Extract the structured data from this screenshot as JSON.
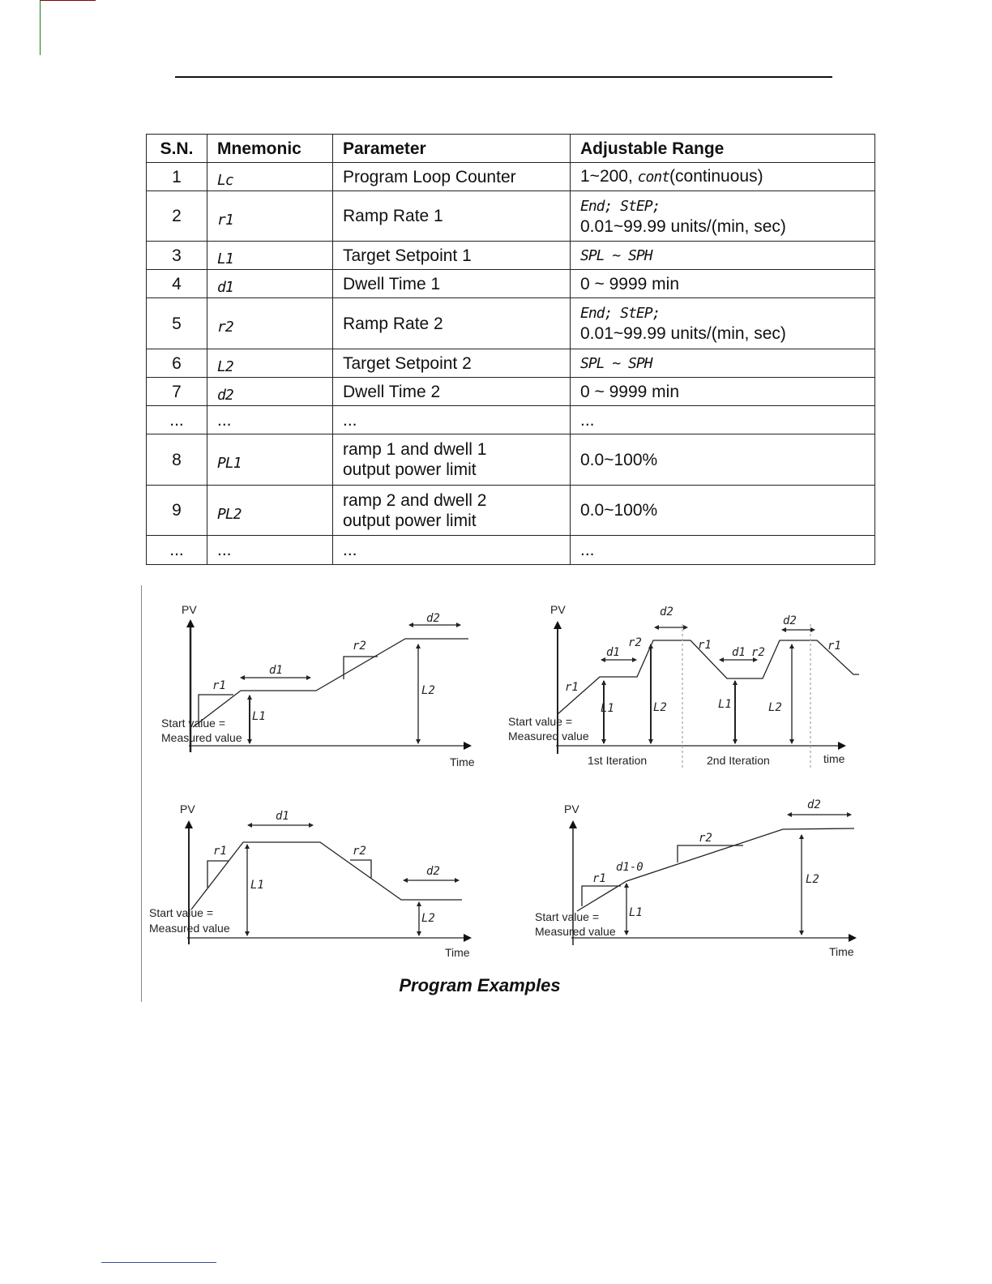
{
  "table": {
    "headers": [
      "S.N.",
      "Mnemonic",
      "Parameter",
      "Adjustable Range"
    ],
    "rows": [
      {
        "sn": "1",
        "mnemonic": "Lc",
        "parameter": [
          "Program Loop Counter"
        ],
        "range": [
          "1~200, ",
          "cont",
          "(continuous)"
        ]
      },
      {
        "sn": "2",
        "mnemonic": "r1",
        "parameter": [
          "Ramp Rate 1"
        ],
        "range": [
          "End; StEP;",
          "0.01~99.99 units/(min, sec)"
        ]
      },
      {
        "sn": "3",
        "mnemonic": "L1",
        "parameter": [
          "Target Setpoint 1"
        ],
        "range": [
          "SPL ~ SPH"
        ]
      },
      {
        "sn": "4",
        "mnemonic": "d1",
        "parameter": [
          "Dwell Time 1"
        ],
        "range": [
          "0 ~ 9999 min"
        ]
      },
      {
        "sn": "5",
        "mnemonic": "r2",
        "parameter": [
          "Ramp Rate 2"
        ],
        "range": [
          "End; StEP;",
          "0.01~99.99 units/(min, sec)"
        ]
      },
      {
        "sn": "6",
        "mnemonic": "L2",
        "parameter": [
          "Target Setpoint 2"
        ],
        "range": [
          "SPL ~ SPH"
        ]
      },
      {
        "sn": "7",
        "mnemonic": "d2",
        "parameter": [
          "Dwell Time 2"
        ],
        "range": [
          "0 ~ 9999 min"
        ]
      },
      {
        "sn": "...",
        "mnemonic": "...",
        "parameter": [
          "..."
        ],
        "range": [
          "..."
        ]
      },
      {
        "sn": "8",
        "mnemonic": "PL1",
        "parameter": [
          "ramp 1 and dwell 1",
          "output power limit"
        ],
        "range": [
          "0.0~100%"
        ]
      },
      {
        "sn": "9",
        "mnemonic": "PL2",
        "parameter": [
          "ramp 2 and dwell 2",
          "output power limit"
        ],
        "range": [
          "0.0~100%"
        ]
      },
      {
        "sn": "...",
        "mnemonic": "...",
        "parameter": [
          "..."
        ],
        "range": [
          "..."
        ]
      }
    ]
  },
  "figure": {
    "caption": "Program Examples",
    "pv": "PV",
    "time": "Time",
    "time_lower": "time",
    "start1": "Start value =",
    "start2": "Measured value",
    "iter1": "1st  Iteration",
    "iter2": "2nd  Iteration",
    "r1": "r1",
    "r2": "r2",
    "d1": "d1",
    "d2": "d2",
    "L1": "L1",
    "L2": "L2",
    "d1_zero": "d1-0"
  }
}
